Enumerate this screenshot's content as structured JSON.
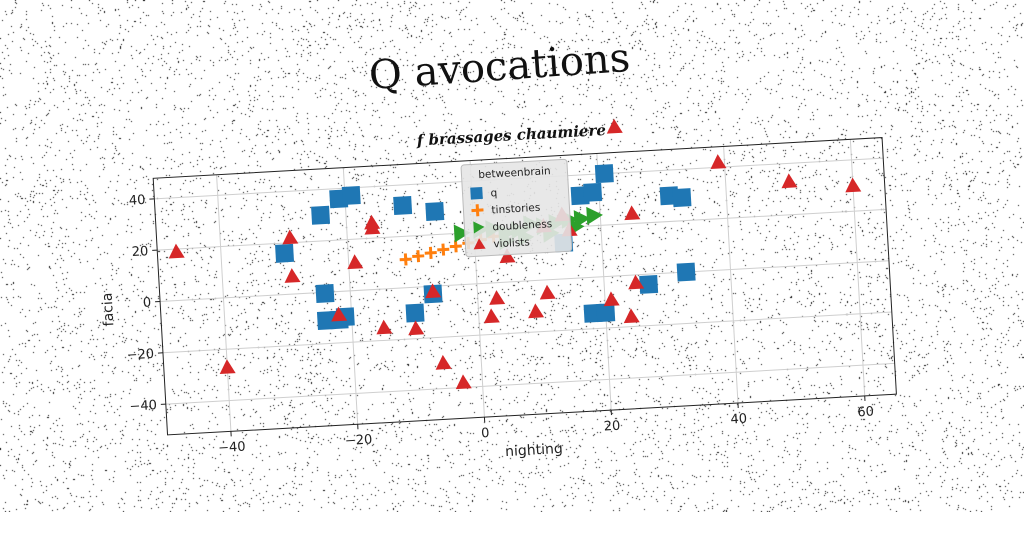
{
  "title": "Q avocations",
  "chart_data": {
    "type": "scatter",
    "subtitle": "f brassages chaumiere",
    "xlabel": "nighting",
    "ylabel": "facia",
    "xlim": [
      -50,
      65
    ],
    "ylim": [
      -52,
      48
    ],
    "xticks": [
      -40,
      -20,
      0,
      20,
      40,
      60
    ],
    "yticks": [
      -40,
      -20,
      0,
      20,
      40
    ],
    "grid": true,
    "legend": {
      "title": "betweenbrain",
      "position": "top-center"
    },
    "series": [
      {
        "name": "q",
        "marker": "square",
        "color": "#1f77b4",
        "points": [
          [
            -30,
            16
          ],
          [
            -24,
            30
          ],
          [
            -21,
            36
          ],
          [
            -19,
            37
          ],
          [
            -11,
            32
          ],
          [
            -6,
            29
          ],
          [
            -24,
            -0.5
          ],
          [
            -24,
            -11
          ],
          [
            -22,
            -11
          ],
          [
            -21,
            -10
          ],
          [
            -10,
            -10
          ],
          [
            -7,
            -3
          ],
          [
            14,
            14
          ],
          [
            17,
            32
          ],
          [
            19,
            33
          ],
          [
            21,
            40
          ],
          [
            31,
            30
          ],
          [
            33,
            29
          ],
          [
            27,
            -4
          ],
          [
            33,
            0
          ],
          [
            18,
            -14
          ],
          [
            20,
            -14
          ]
        ]
      },
      {
        "name": "tinstories",
        "marker": "plus",
        "color": "#ff7f0e",
        "points": [
          [
            -11,
            11
          ],
          [
            -9,
            12
          ],
          [
            -7,
            13
          ],
          [
            -5,
            14
          ],
          [
            -3,
            15
          ],
          [
            -1,
            16
          ],
          [
            1,
            17
          ],
          [
            3,
            18
          ]
        ]
      },
      {
        "name": "doubleness",
        "marker": "triangle-right",
        "color": "#2ca02c",
        "points": [
          [
            -2,
            20
          ],
          [
            1,
            21
          ],
          [
            3,
            21
          ],
          [
            5,
            19
          ],
          [
            7,
            20
          ],
          [
            9,
            22
          ],
          [
            11,
            21
          ],
          [
            13,
            22
          ],
          [
            15,
            23
          ],
          [
            17,
            23
          ],
          [
            19,
            24
          ],
          [
            5,
            16
          ],
          [
            8,
            17
          ],
          [
            12,
            18
          ],
          [
            16,
            20
          ]
        ]
      },
      {
        "name": "violists",
        "marker": "triangle",
        "color": "#d62728",
        "points": [
          [
            -47,
            19
          ],
          [
            -40,
            -27
          ],
          [
            -29,
            22
          ],
          [
            -29,
            7
          ],
          [
            -22,
            -9
          ],
          [
            -19,
            11
          ],
          [
            -16,
            26
          ],
          [
            -16,
            24
          ],
          [
            -15,
            -15
          ],
          [
            -10,
            -16
          ],
          [
            -7,
            -2
          ],
          [
            -6,
            -30
          ],
          [
            -3,
            -38
          ],
          [
            2,
            -13
          ],
          [
            3,
            -6
          ],
          [
            5,
            10
          ],
          [
            9,
            -12
          ],
          [
            11,
            -5
          ],
          [
            11,
            21
          ],
          [
            14,
            25
          ],
          [
            15,
            19
          ],
          [
            21,
            -9
          ],
          [
            24,
            -16
          ],
          [
            25,
            -3
          ],
          [
            25,
            24
          ],
          [
            23,
            58
          ],
          [
            39,
            42
          ],
          [
            50,
            33
          ],
          [
            60,
            30
          ]
        ]
      }
    ]
  }
}
